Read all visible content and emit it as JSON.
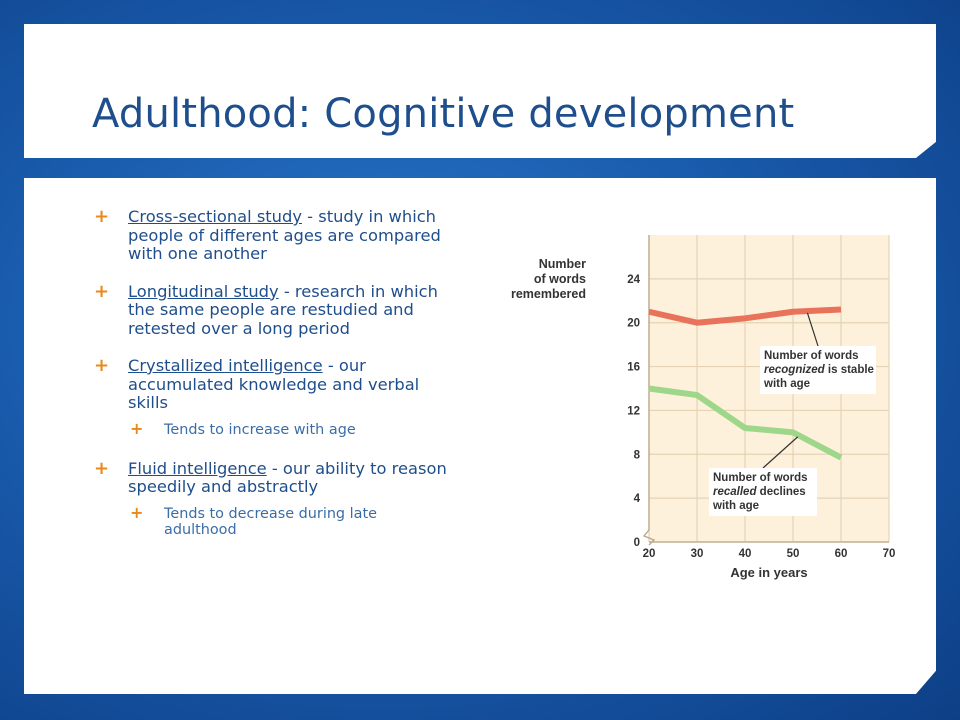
{
  "title": "Adulthood: Cognitive development",
  "bullets": [
    {
      "term": "Cross-sectional study",
      "text": " - study in which people of different ages are compared with one another"
    },
    {
      "term": "Longitudinal study",
      "text": " - research in which the same people are restudied and retested over a long period"
    },
    {
      "term": "Crystallized intelligence",
      "text": " - our accumulated knowledge and verbal skills",
      "sub": "Tends to increase with age"
    },
    {
      "term": "Fluid intelligence",
      "text": " - our ability to reason speedily and abstractly",
      "sub": "Tends to decrease during late adulthood"
    }
  ],
  "colors": {
    "title": "#1f4e8c",
    "bullet_marker": "#e8891e",
    "recognized": "#e8735a",
    "recalled": "#9ed68a",
    "plot_bg": "#fdf1dc",
    "grid": "#e6d3b6"
  },
  "chart_data": {
    "type": "line",
    "ylabel_lines": [
      "Number",
      "of words",
      "remembered"
    ],
    "xlabel": "Age in years",
    "x_ticks": [
      20,
      30,
      40,
      50,
      60,
      70
    ],
    "y_ticks": [
      0,
      4,
      8,
      12,
      16,
      20,
      24
    ],
    "xlim": [
      20,
      70
    ],
    "ylim": [
      0,
      28
    ],
    "series": [
      {
        "key": "recognized",
        "x": [
          20,
          30,
          40,
          50,
          60
        ],
        "values": [
          21,
          20,
          20.4,
          21,
          21.2
        ]
      },
      {
        "key": "recalled",
        "x": [
          20,
          30,
          40,
          50,
          60
        ],
        "values": [
          14,
          13.4,
          10.4,
          10,
          7.7
        ]
      }
    ],
    "annotations": [
      {
        "key": "recognized",
        "lines": [
          [
            {
              "t": "Number of words",
              "i": false
            }
          ],
          [
            {
              "t": "recognized",
              "i": true
            },
            {
              "t": " is stable",
              "i": false
            }
          ],
          [
            {
              "t": "with age",
              "i": false
            }
          ]
        ],
        "pointer": [
          53,
          20.9
        ]
      },
      {
        "key": "recalled",
        "lines": [
          [
            {
              "t": "Number of words",
              "i": false
            }
          ],
          [
            {
              "t": "recalled",
              "i": true
            },
            {
              "t": " declines",
              "i": false
            }
          ],
          [
            {
              "t": "with age",
              "i": false
            }
          ]
        ],
        "pointer": [
          51,
          9.6
        ]
      }
    ]
  }
}
